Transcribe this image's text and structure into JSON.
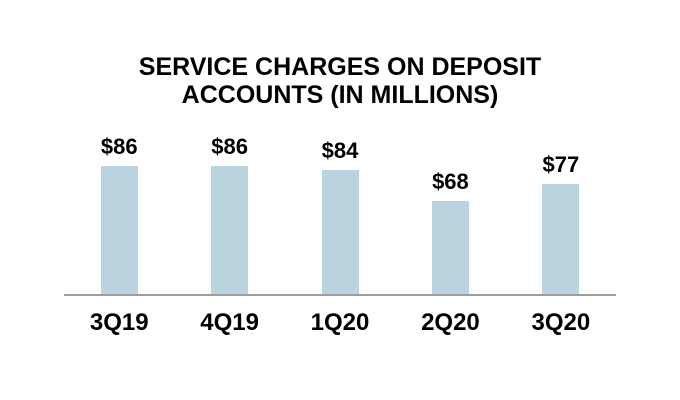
{
  "chart_data": {
    "type": "bar",
    "title": "SERVICE CHARGES ON DEPOSIT ACCOUNTS (IN MILLIONS)",
    "categories": [
      "3Q19",
      "4Q19",
      "1Q20",
      "2Q20",
      "3Q20"
    ],
    "values": [
      86,
      86,
      84,
      68,
      77
    ],
    "data_labels": [
      "$86",
      "$86",
      "$84",
      "$68",
      "$77"
    ],
    "xlabel": "",
    "ylabel": "",
    "ylim": [
      20,
      160
    ],
    "grid": false,
    "legend": false,
    "colors": {
      "bar_fill": "#b9d3df",
      "axis_line": "#9d9d9d",
      "text": "#000000",
      "background": "#ffffff"
    }
  }
}
